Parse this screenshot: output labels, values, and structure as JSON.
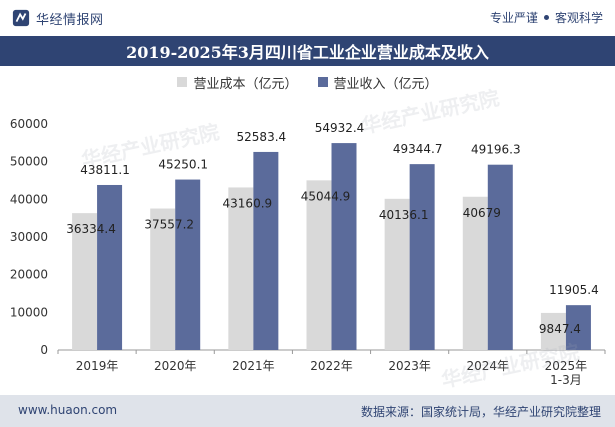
{
  "header": {
    "brand": "华经情报网",
    "slogan_left": "专业严谨",
    "slogan_right": "客观科学"
  },
  "title": "2019-2025年3月四川省工业企业营业成本及收入",
  "footer": {
    "url": "www.huaon.com",
    "source": "数据来源：国家统计局，华经产业研究院整理"
  },
  "watermark": "华经产业研究院",
  "colors": {
    "brand": "#2f4473",
    "cost": "#d9d9d9",
    "revenue": "#5b6b9b"
  },
  "chart_data": {
    "type": "bar",
    "categories": [
      "2019年",
      "2020年",
      "2021年",
      "2022年",
      "2023年",
      "2024年",
      "2025年\n1-3月"
    ],
    "series": [
      {
        "name": "营业成本（亿元）",
        "values": [
          36334.4,
          37557.2,
          43160.9,
          45044.9,
          40136.1,
          40679,
          9847.4
        ],
        "labels": [
          "36334.4",
          "37557.2",
          "43160.9",
          "45044.9",
          "40136.1",
          "40679",
          "9847.4"
        ]
      },
      {
        "name": "营业收入（亿元）",
        "values": [
          43811.1,
          45250.1,
          52583.4,
          54932.4,
          49344.7,
          49196.3,
          11905.4
        ],
        "labels": [
          "43811.1",
          "45250.1",
          "52583.4",
          "54932.4",
          "49344.7",
          "49196.3",
          "11905.4"
        ]
      }
    ],
    "ylim": [
      0,
      60000
    ],
    "yticks": [
      0,
      10000,
      20000,
      30000,
      40000,
      50000,
      60000
    ],
    "legend_position": "top-center",
    "grid": false
  }
}
